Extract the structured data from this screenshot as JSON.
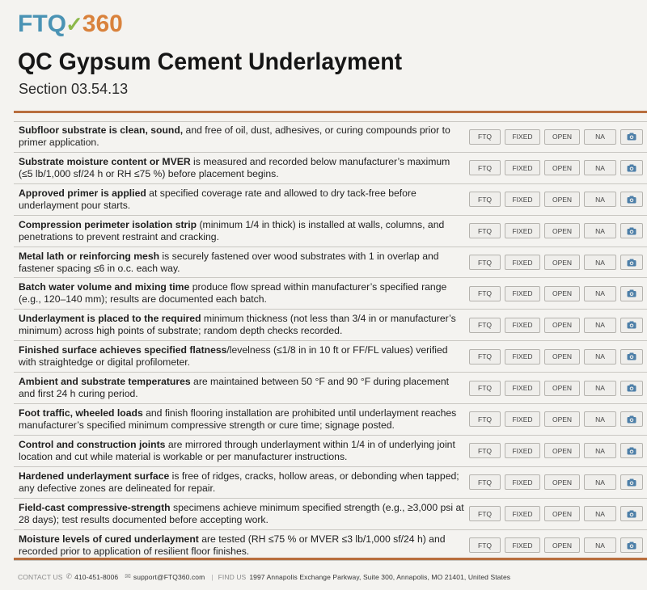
{
  "logo": {
    "part1": "FTQ",
    "part2": "360"
  },
  "title": "QC Gypsum Cement Underlayment",
  "subtitle": "Section 03.54.13",
  "buttons": {
    "ftq": "FTQ",
    "fixed": "FIXED",
    "open": "OPEN",
    "na": "NA"
  },
  "items": [
    {
      "bold": "Subfloor substrate is clean, sound,",
      "rest": " and free of oil, dust, adhesives, or curing compounds prior to primer application."
    },
    {
      "bold": "Substrate moisture content or MVER",
      "rest": " is measured and recorded below manufacturer’s maximum (≤5 lb/1,000 sf/24 h or RH ≤75 %) before placement begins."
    },
    {
      "bold": "Approved primer is applied",
      "rest": " at specified coverage rate and allowed to dry tack-free before underlayment pour starts."
    },
    {
      "bold": "Compression perimeter isolation strip",
      "rest": " (minimum 1/4 in thick) is installed at walls, columns, and penetrations to prevent restraint and cracking."
    },
    {
      "bold": "Metal lath or reinforcing mesh",
      "rest": " is securely fastened over wood substrates with 1 in overlap and fastener spacing ≤6 in o.c. each way."
    },
    {
      "bold": "Batch water volume and mixing time",
      "rest": " produce flow spread within manufacturer’s specified range (e.g., 120–140 mm); results are documented each batch."
    },
    {
      "bold": "Underlayment is placed to the required",
      "rest": " minimum thickness (not less than 3/4 in or manufacturer’s minimum) across high points of substrate; random depth checks recorded."
    },
    {
      "bold": "Finished surface achieves specified flatness",
      "rest": "/levelness (≤1/8 in in 10 ft or FF/FL values) verified with straightedge or digital profilometer."
    },
    {
      "bold": "Ambient and substrate temperatures",
      "rest": " are maintained between 50 °F and 90 °F during placement and first 24 h curing period."
    },
    {
      "bold": "Foot traffic, wheeled loads",
      "rest": " and finish flooring installation are prohibited until underlayment reaches manufacturer’s specified minimum compressive strength or cure time; signage posted."
    },
    {
      "bold": "Control and construction joints",
      "rest": " are mirrored through underlayment within 1/4 in of underlying joint location and cut while material is workable or per manufacturer instructions."
    },
    {
      "bold": "Hardened underlayment surface",
      "rest": " is free of ridges, cracks, hollow areas, or debonding when tapped; any defective zones are delineated for repair."
    },
    {
      "bold": "Field-cast compressive-strength",
      "rest": " specimens achieve minimum specified strength (e.g., ≥3,000 psi at 28 days); test results documented before accepting work."
    },
    {
      "bold": "Moisture levels of cured underlayment",
      "rest": " are tested (RH ≤75 % or MVER ≤3 lb/1,000 sf/24 h) and recorded prior to application of resilient floor finishes."
    }
  ],
  "footer": {
    "contact_label": "CONTACT US",
    "phone": "410-451-8006",
    "email": "support@FTQ360.com",
    "find_label": "FIND US",
    "address": "1997 Annapolis Exchange Parkway, Suite 300, Annapolis, MO 21401, United States"
  },
  "colors": {
    "accent_rule": "#b86e3e",
    "logo_blue": "#4a93b4",
    "logo_orange": "#d9823c",
    "logo_check": "#8cb84a"
  }
}
